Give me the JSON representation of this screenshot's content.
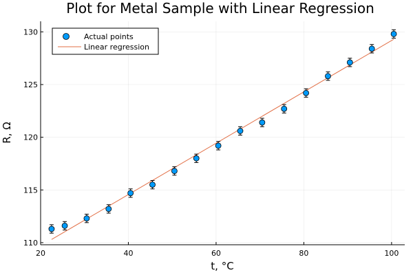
{
  "chart_data": {
    "type": "scatter",
    "title": "Plot for Metal Sample with Linear Regression",
    "xlabel": "t, °C",
    "ylabel": "R, Ω",
    "xlim": [
      20,
      103
    ],
    "ylim": [
      109.8,
      131
    ],
    "xticks": [
      20,
      40,
      60,
      80,
      100
    ],
    "yticks": [
      110,
      115,
      120,
      125,
      130
    ],
    "grid": true,
    "legend_position": "top-left",
    "series": [
      {
        "name": "Actual points",
        "kind": "scatter",
        "color": "#009af9",
        "x": [
          22.5,
          25.5,
          30.5,
          35.5,
          40.5,
          45.5,
          50.5,
          55.5,
          60.5,
          65.5,
          70.5,
          75.5,
          80.5,
          85.5,
          90.5,
          95.5,
          100.5
        ],
        "y": [
          111.3,
          111.6,
          112.3,
          113.2,
          114.7,
          115.5,
          116.8,
          118.0,
          119.2,
          120.6,
          121.4,
          122.7,
          124.2,
          125.8,
          127.1,
          128.4,
          129.8
        ],
        "error": 0.4
      },
      {
        "name": "Linear regression",
        "kind": "line",
        "color": "#e26f46",
        "x": [
          22.5,
          100.5
        ],
        "y": [
          110.3,
          129.3
        ]
      }
    ]
  }
}
